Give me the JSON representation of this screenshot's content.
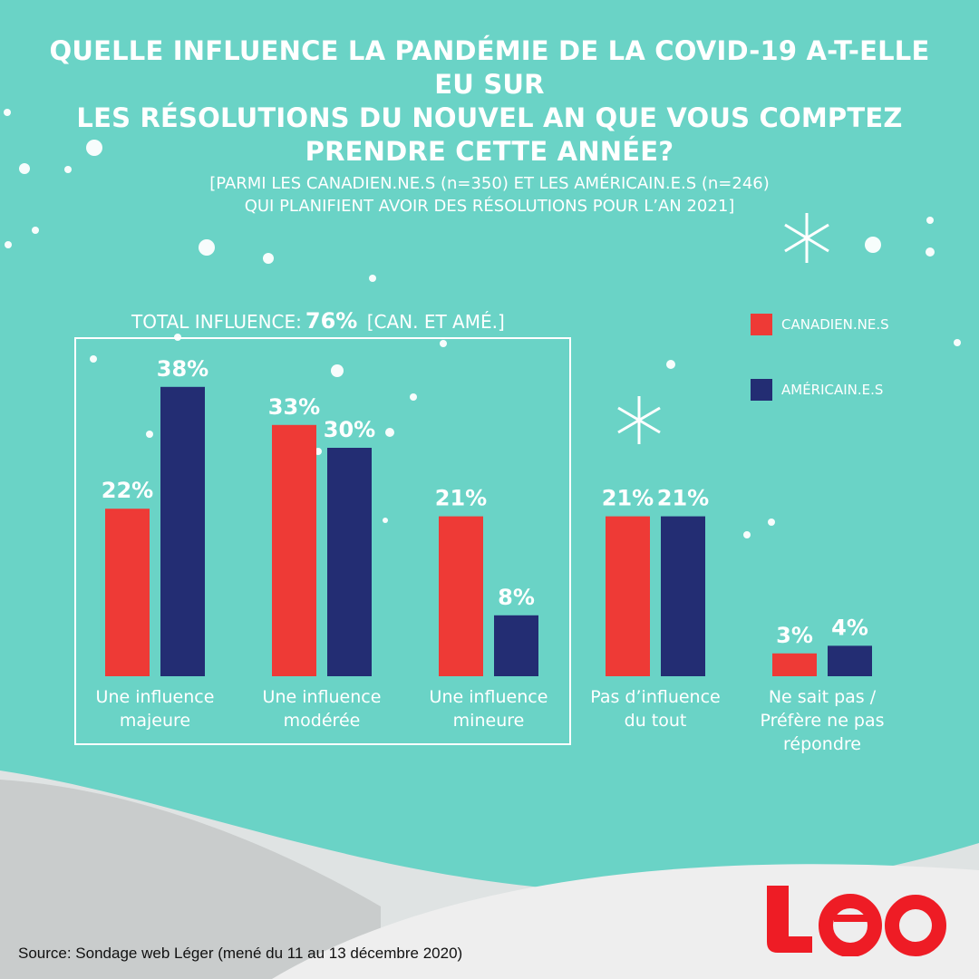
{
  "title": [
    "QUELLE INFLUENCE LA PANDÉMIE DE LA COVID-19 A-T-ELLE EU SUR",
    "LES RÉSOLUTIONS DU NOUVEL AN QUE VOUS COMPTEZ",
    "PRENDRE CETTE ANNÉE?"
  ],
  "subtitle": [
    "[PARMI LES CANADIEN.NE.S (n=350) ET LES AMÉRICAIN.E.S (n=246)",
    "QUI PLANIFIENT AVOIR DES RÉSOLUTIONS POUR L’AN 2021]"
  ],
  "total": {
    "label": "TOTAL INFLUENCE:",
    "value": "76%",
    "suffix": "[CAN. ET AMÉ.]"
  },
  "source": "Source: Sondage web Léger (mené du 11 au 13 décembre 2020)",
  "logo": "Léo",
  "colors": {
    "background": "#6ad3c6",
    "canadiens": "#ee3a36",
    "americains": "#232d73",
    "logo": "#ee1c25"
  },
  "chart_data": {
    "type": "bar",
    "categories": [
      [
        "Une influence",
        "majeure"
      ],
      [
        "Une influence",
        "modérée"
      ],
      [
        "Une influence",
        "mineure"
      ],
      [
        "Pas d’influence",
        "du tout"
      ],
      [
        "Ne sait pas /",
        "Préfère ne pas",
        "répondre"
      ]
    ],
    "series": [
      {
        "name": "CANADIEN.NE.S",
        "values": [
          22,
          33,
          21,
          21,
          3
        ],
        "color": "#ee3a36"
      },
      {
        "name": "AMÉRICAIN.E.S",
        "values": [
          38,
          30,
          8,
          21,
          4
        ],
        "color": "#232d73"
      }
    ],
    "unit": "%",
    "legend": "top-right",
    "grid": false
  }
}
